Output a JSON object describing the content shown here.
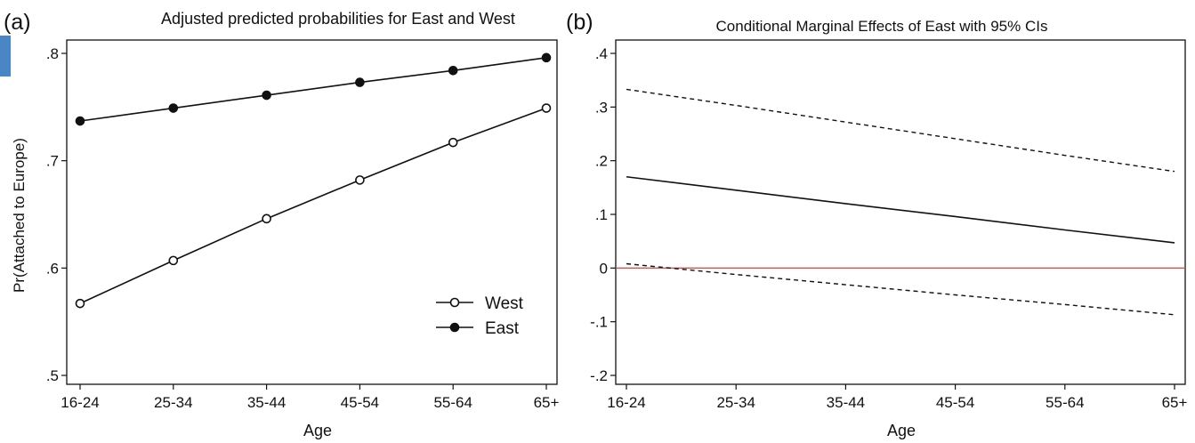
{
  "colors": {
    "axis": "#111111",
    "zero_line": "#d9534f",
    "accent": "#4a86c5"
  },
  "chart_data": [
    {
      "type": "line",
      "panel_label": "(a)",
      "title": "Adjusted predicted probabilities for East and West",
      "xlabel": "Age",
      "ylabel": "Pr(Attached to Europe)",
      "categories": [
        "16-24",
        "25-34",
        "35-44",
        "45-54",
        "55-64",
        "65+"
      ],
      "ylim": [
        0.5,
        0.8
      ],
      "yticks": [
        0.5,
        0.6,
        0.7,
        0.8
      ],
      "ytick_labels": [
        ".5",
        ".6",
        ".7",
        ".8"
      ],
      "legend_position": "bottom-right",
      "grid": false,
      "series": [
        {
          "name": "West",
          "marker": "hollow-circle",
          "values": [
            0.567,
            0.607,
            0.646,
            0.682,
            0.717,
            0.749
          ]
        },
        {
          "name": "East",
          "marker": "filled-circle",
          "values": [
            0.737,
            0.749,
            0.761,
            0.773,
            0.784,
            0.796
          ]
        }
      ]
    },
    {
      "type": "line",
      "panel_label": "(b)",
      "title": "Conditional Marginal Effects of East with 95% CIs",
      "xlabel": "Age",
      "ylabel": "",
      "categories": [
        "16-24",
        "25-34",
        "35-44",
        "45-54",
        "55-64",
        "65+"
      ],
      "ylim": [
        -0.2,
        0.4
      ],
      "yticks": [
        -0.2,
        -0.1,
        0,
        0.1,
        0.2,
        0.3,
        0.4
      ],
      "ytick_labels": [
        "-.2",
        "-.1",
        "0",
        ".1",
        ".2",
        ".3",
        ".4"
      ],
      "grid": false,
      "reference_line": {
        "y": 0
      },
      "series": [
        {
          "style": "solid",
          "values": [
            0.17,
            0.145,
            0.12,
            0.096,
            0.071,
            0.047
          ]
        },
        {
          "style": "dashed",
          "values": [
            0.333,
            0.303,
            0.272,
            0.241,
            0.21,
            0.18
          ]
        },
        {
          "style": "dashed",
          "values": [
            0.008,
            -0.012,
            -0.031,
            -0.05,
            -0.068,
            -0.087
          ]
        }
      ]
    }
  ]
}
